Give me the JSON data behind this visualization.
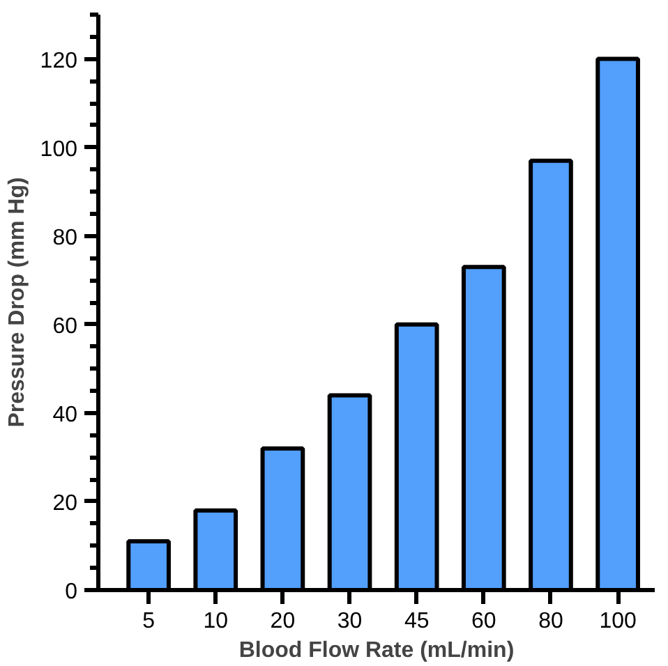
{
  "chart_data": {
    "type": "bar",
    "xlabel": "Blood Flow Rate (mL/min)",
    "ylabel": "Pressure Drop (mm Hg)",
    "categories": [
      "5",
      "10",
      "20",
      "30",
      "45",
      "60",
      "80",
      "100"
    ],
    "values": [
      11,
      18,
      32,
      44,
      60,
      73,
      97,
      120
    ],
    "color": "#529ffc",
    "ylim": [
      0,
      130
    ],
    "yticks": [
      0,
      20,
      40,
      60,
      80,
      100,
      120
    ],
    "grid": false
  }
}
